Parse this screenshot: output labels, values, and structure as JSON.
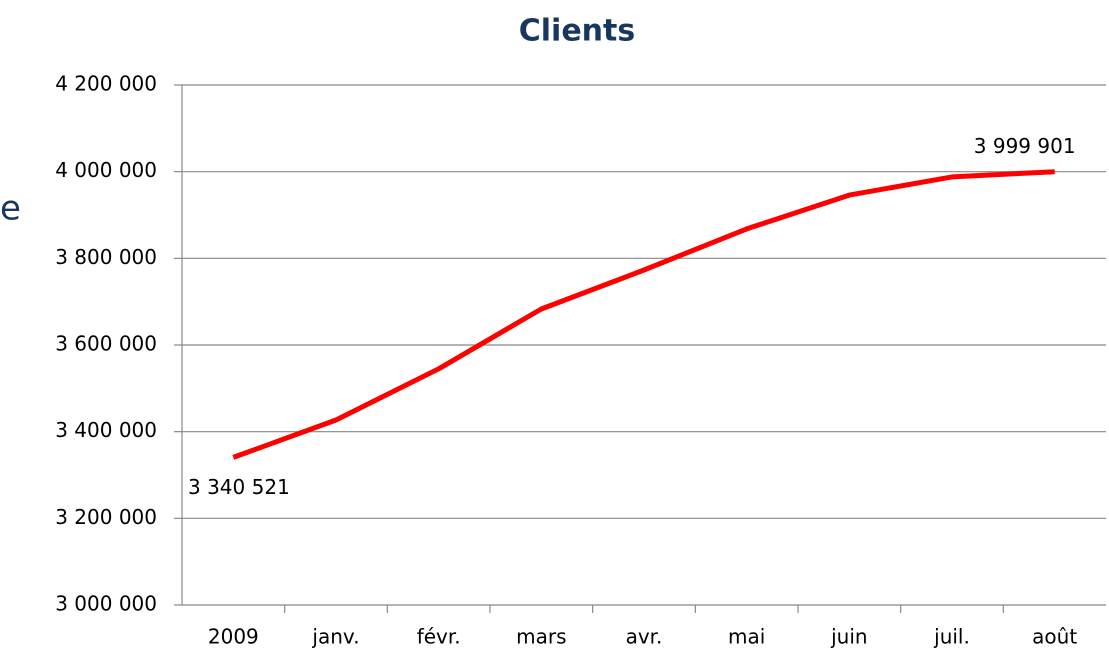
{
  "chart_data": {
    "type": "line",
    "title": "Clients",
    "annotations": [
      "e"
    ],
    "categories": [
      "2009",
      "janv.",
      "févr.",
      "mars",
      "avr.",
      "mai",
      "juin",
      "juil.",
      "août"
    ],
    "series": [
      {
        "name": "Clients",
        "color": "#ff0000",
        "values": [
          3340521,
          3427000,
          3545000,
          3683000,
          3773000,
          3868000,
          3946000,
          3988000,
          3999901
        ],
        "value_labels": [
          "3 340 521",
          null,
          null,
          null,
          null,
          null,
          null,
          null,
          "3 999 901"
        ]
      }
    ],
    "ylim": [
      3000000,
      4200000
    ],
    "yticks": [
      {
        "value": 3000000,
        "label": "3 000 000"
      },
      {
        "value": 3200000,
        "label": "3 200 000"
      },
      {
        "value": 3400000,
        "label": "3 400 000"
      },
      {
        "value": 3600000,
        "label": "3 600 000"
      },
      {
        "value": 3800000,
        "label": "3 800 000"
      },
      {
        "value": 4000000,
        "label": "4 000 000"
      },
      {
        "value": 4200000,
        "label": "4 200 000"
      }
    ],
    "grid": true
  }
}
